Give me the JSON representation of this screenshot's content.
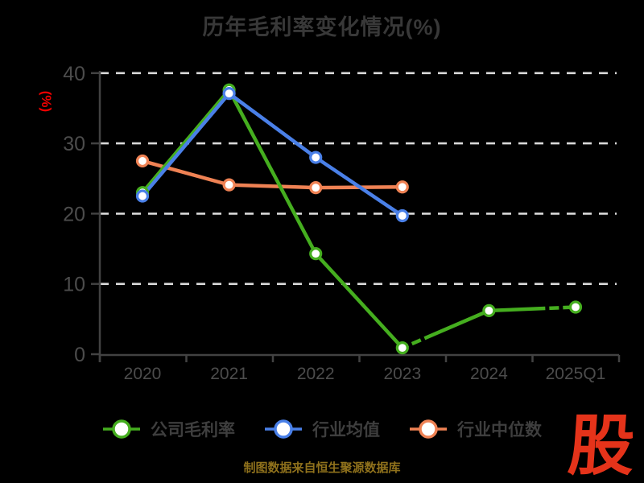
{
  "title": "历年毛利率变化情况(%)",
  "source_note": "制图数据来自恒生聚源数据库",
  "watermark": "股",
  "colors": {
    "background": "#000000",
    "grid": "#d9d9d9",
    "axis": "#424242",
    "tick_label": "#4c4c4c",
    "title": "#383838",
    "legend_label": "#3e3e3e",
    "ylabel": "#ee0000",
    "source": "#8f711c",
    "watermark": "#e5331a"
  },
  "chart_data": {
    "type": "line",
    "title": "历年毛利率变化情况(%)",
    "xlabel": "",
    "ylabel": "(%)",
    "categories": [
      "2020",
      "2021",
      "2022",
      "2023",
      "2024",
      "2025Q1"
    ],
    "yticks": [
      0,
      10,
      20,
      30,
      40
    ],
    "ylim": [
      0,
      40
    ],
    "grid": "horizontal-dashed-white",
    "legend_position": "bottom",
    "series": [
      {
        "id": "company-gross-margin",
        "name": "公司毛利率",
        "color": "#45ae1f",
        "values": [
          23.0,
          37.6,
          14.3,
          0.9,
          6.2,
          6.7
        ]
      },
      {
        "id": "industry-mean",
        "name": "行业均值",
        "color": "#4a80e8",
        "values": [
          22.5,
          37.1,
          28.0,
          19.7,
          null,
          null
        ]
      },
      {
        "id": "industry-median",
        "name": "行业中位数",
        "color": "#ef8254",
        "values": [
          27.5,
          24.1,
          23.7,
          23.8,
          null,
          null
        ]
      }
    ]
  }
}
